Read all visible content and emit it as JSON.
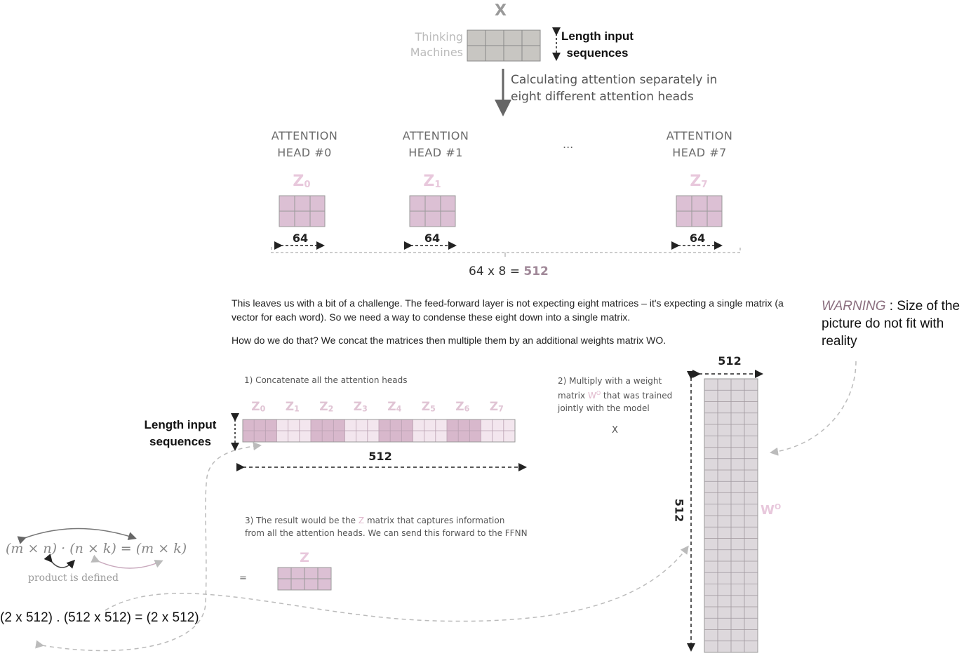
{
  "x_label": "X",
  "thinking_line1": "Thinking",
  "thinking_line2": "Machines",
  "length_label_top_line1": "Length input",
  "length_label_top_line2": "sequences",
  "calc_line1": "Calculating attention separately in",
  "calc_line2": "eight different attention heads",
  "heads": [
    {
      "line1": "ATTENTION",
      "line2": "HEAD #0",
      "z": "Z",
      "sub": "0",
      "dim": "64"
    },
    {
      "line1": "ATTENTION",
      "line2": "HEAD #1",
      "z": "Z",
      "sub": "1",
      "dim": "64"
    },
    {
      "line1": "ATTENTION",
      "line2": "HEAD #7",
      "z": "Z",
      "sub": "7",
      "dim": "64"
    }
  ],
  "ellipsis": "...",
  "total_prefix": "64 x 8 = ",
  "total_value": "512",
  "paragraph1": "This leaves us with a bit of a challenge. The feed-forward layer is not expecting eight matrices – it's expecting a single matrix (a vector for each word). So we need a way to condense these eight down into a single matrix.",
  "paragraph2": "How do we do that? We concat the matrices then multiple them by an additional weights matrix WO.",
  "warning_word": "WARNING",
  "warning_rest": " : Size of the picture do not fit with reality",
  "step1": "1) Concatenate all the attention heads",
  "concat_z": [
    "0",
    "1",
    "2",
    "3",
    "4",
    "5",
    "6",
    "7"
  ],
  "length_label_mid_line1": "Length input",
  "length_label_mid_line2": "sequences",
  "concat_dim": "512",
  "step2_a": "2) Multiply with a weight",
  "step2_b1": "matrix ",
  "step2_wo": "W",
  "step2_wo_sup": "O",
  "step2_b2": " that was trained",
  "step2_c": "jointly with the model",
  "times_sign": "X",
  "wo_top_dim": "512",
  "wo_side_dim": "512",
  "wo_label": "W",
  "wo_label_sup": "O",
  "step3_a1": "3) The result would be the ",
  "step3_z": "Z",
  "step3_a2": " matrix that captures information",
  "step3_b": "from all the attention heads. We can send this forward to the FFNN",
  "equals_sign": "=",
  "result_z": "Z",
  "formula": "(m × n) · (n × k) = (m × k)",
  "product_defined": "product is defined",
  "dims_equation": "(2 x 512) . (512 x 512) = (2 x 512)",
  "colors": {
    "pink": "#e8c8dc",
    "pink_fill": "#dcc0d4",
    "gray_fill": "#c8c6c2",
    "wo_fill": "#ddd8dc"
  }
}
